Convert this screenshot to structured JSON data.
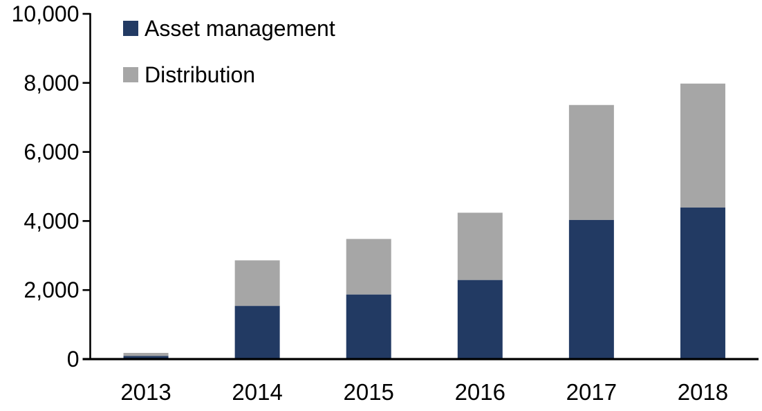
{
  "chart_data": {
    "type": "bar",
    "stacked": true,
    "title": "",
    "xlabel": "",
    "ylabel": "",
    "categories": [
      "2013",
      "2014",
      "2015",
      "2016",
      "2017",
      "2018"
    ],
    "series": [
      {
        "name": "Asset management",
        "color": "#223A63",
        "values": [
          90,
          1540,
          1870,
          2290,
          4030,
          4390
        ]
      },
      {
        "name": "Distribution",
        "color": "#A6A6A6",
        "values": [
          90,
          1320,
          1610,
          1950,
          3330,
          3590
        ]
      }
    ],
    "ylim": [
      0,
      10000
    ],
    "ytick_values": [
      0,
      2000,
      4000,
      6000,
      8000,
      10000
    ],
    "yticks": [
      "0",
      "2,000",
      "4,000",
      "6,000",
      "8,000",
      "10,000"
    ],
    "grid": false,
    "legend_position": "top-left",
    "axis_color": "#000000",
    "background": "#FFFFFF"
  },
  "legend": {
    "items": [
      {
        "label": "Asset management",
        "color": "#223A63"
      },
      {
        "label": "Distribution",
        "color": "#A6A6A6"
      }
    ]
  }
}
